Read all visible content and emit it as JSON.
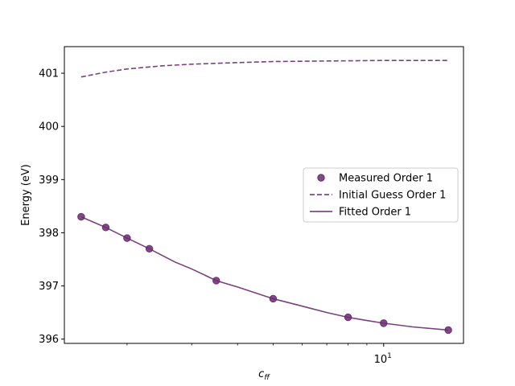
{
  "chart_data": {
    "type": "line",
    "title": "",
    "xlabel_main": "c",
    "xlabel_sub": "ff",
    "ylabel": "Energy (eV)",
    "xscale": "log",
    "xlim": [
      1.35,
      16.5
    ],
    "ylim": [
      395.92,
      401.5
    ],
    "yticks": [
      396,
      397,
      398,
      399,
      400,
      401
    ],
    "xticks_major": [
      {
        "value": 10,
        "base": "10",
        "exp": "1"
      }
    ],
    "xticks_minor": [
      2,
      3,
      4,
      5,
      6,
      7,
      8,
      9
    ],
    "grid": false,
    "legend_position": "center-right",
    "color": "#6a2c70",
    "series": [
      {
        "name": "Measured Order 1",
        "kind": "scatter",
        "x": [
          1.5,
          1.75,
          2.0,
          2.3,
          3.5,
          5.0,
          8.0,
          10.0,
          15.0
        ],
        "y": [
          398.3,
          398.1,
          397.9,
          397.7,
          397.1,
          396.76,
          396.41,
          396.3,
          396.17
        ]
      },
      {
        "name": "Initial Guess Order 1",
        "kind": "dashed-line",
        "x": [
          1.5,
          1.75,
          2.0,
          2.5,
          3.0,
          4.0,
          5.0,
          7.0,
          10.0,
          15.0
        ],
        "y": [
          400.93,
          401.02,
          401.08,
          401.14,
          401.17,
          401.2,
          401.22,
          401.23,
          401.24,
          401.24
        ]
      },
      {
        "name": "Fitted Order 1",
        "kind": "solid-line",
        "x": [
          1.5,
          1.75,
          2.0,
          2.3,
          2.7,
          3.0,
          3.5,
          4.0,
          5.0,
          6.0,
          7.0,
          8.0,
          9.0,
          10.0,
          12.0,
          15.0
        ],
        "y": [
          398.3,
          398.1,
          397.9,
          397.7,
          397.45,
          397.32,
          397.1,
          396.98,
          396.76,
          396.62,
          396.5,
          396.41,
          396.35,
          396.3,
          396.23,
          396.17
        ]
      }
    ]
  }
}
